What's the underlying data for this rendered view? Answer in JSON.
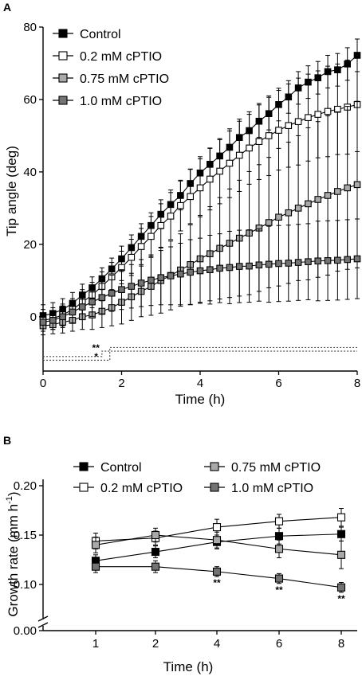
{
  "colors": {
    "control": "#000000",
    "c02": "#ffffff",
    "c075": "#a9a9a9",
    "c10": "#737373"
  },
  "chart_data": [
    {
      "panel": "A",
      "type": "line",
      "xlabel": "Time (h)",
      "ylabel": "Tip angle  (deg)",
      "xlim": [
        0,
        8
      ],
      "ylim": [
        -15,
        80
      ],
      "xticks": [
        0,
        2,
        4,
        6,
        8
      ],
      "yticks": [
        0,
        20,
        40,
        60,
        80
      ],
      "legend_position": "top-left",
      "x": [
        0,
        0.25,
        0.5,
        0.75,
        1.0,
        1.25,
        1.5,
        1.75,
        2.0,
        2.25,
        2.5,
        2.75,
        3.0,
        3.25,
        3.5,
        3.75,
        4.0,
        4.25,
        4.5,
        4.75,
        5.0,
        5.25,
        5.5,
        5.75,
        6.0,
        6.25,
        6.5,
        6.75,
        7.0,
        7.25,
        7.5,
        7.75,
        8.0
      ],
      "series": [
        {
          "name": "Control",
          "color_key": "control",
          "values": [
            0.3,
            0.9,
            2.0,
            3.7,
            6.0,
            8.0,
            10.5,
            13.2,
            16.0,
            19.1,
            22.2,
            25.2,
            28.3,
            31.0,
            33.5,
            36.8,
            39.7,
            42.1,
            44.4,
            46.8,
            49.5,
            51.4,
            54.0,
            56.1,
            58.6,
            60.7,
            63.2,
            64.8,
            66.0,
            67.7,
            68.2,
            69.8,
            72.2
          ],
          "error": [
            3,
            3,
            3,
            3,
            3,
            3,
            3,
            3,
            3.5,
            3.5,
            3.5,
            3.5,
            4,
            4,
            4,
            4,
            4.5,
            4.5,
            4.5,
            4.5,
            4.5,
            4.5,
            4.5,
            4.5,
            4.5,
            4.5,
            4.5,
            4.5,
            4.5,
            4.5,
            4.5,
            4.5,
            4.5
          ]
        },
        {
          "name": "0.2 mM cPTIO",
          "color_key": "c02",
          "values": [
            -1.0,
            -0.5,
            0.5,
            2.0,
            4.0,
            6.0,
            8.4,
            11.0,
            13.6,
            16.4,
            19.4,
            22.2,
            25.2,
            27.8,
            30.7,
            33.2,
            35.6,
            38.0,
            40.2,
            42.4,
            44.6,
            46.6,
            48.4,
            50.0,
            51.5,
            52.8,
            53.9,
            55.0,
            55.9,
            56.7,
            57.3,
            57.9,
            58.6
          ],
          "error": [
            3,
            3,
            3,
            3,
            3.5,
            3.5,
            4,
            4,
            4.5,
            5,
            5,
            5.5,
            6,
            6.5,
            7,
            7.5,
            8,
            8.5,
            9,
            9.5,
            10,
            10,
            10.5,
            11,
            11,
            11.5,
            12,
            12,
            12,
            12.5,
            12.5,
            13,
            13
          ]
        },
        {
          "name": "0.75 mM cPTIO",
          "color_key": "c075",
          "values": [
            -2.5,
            -2.2,
            -1.5,
            -1.0,
            0.0,
            0.5,
            1.5,
            2.5,
            4.0,
            5.5,
            7.0,
            8.4,
            10.0,
            11.4,
            12.9,
            14.4,
            16.0,
            17.4,
            18.9,
            20.3,
            21.7,
            23.1,
            24.5,
            26.0,
            27.5,
            28.7,
            30.0,
            31.2,
            32.4,
            33.5,
            34.6,
            35.6,
            36.5
          ],
          "error": [
            2.5,
            2.5,
            3,
            3,
            3.5,
            4,
            4.5,
            5,
            6,
            6.5,
            7,
            8,
            9,
            9.5,
            10,
            11,
            12,
            13,
            14,
            15,
            16,
            17,
            17.5,
            18,
            19,
            19.5,
            20,
            21,
            21.5,
            22,
            22,
            22.5,
            23
          ]
        },
        {
          "name": "1.0 mM cPTIO",
          "color_key": "c10",
          "values": [
            -1.5,
            -1.0,
            0.0,
            1.3,
            2.7,
            4.1,
            5.3,
            6.5,
            7.5,
            8.4,
            9.3,
            10.1,
            10.8,
            11.3,
            11.8,
            12.3,
            12.7,
            13.0,
            13.4,
            13.6,
            13.9,
            14.0,
            14.3,
            14.5,
            14.7,
            14.8,
            15.0,
            15.2,
            15.4,
            15.5,
            15.6,
            15.8,
            16.0
          ],
          "error": [
            2.5,
            2.5,
            3,
            3,
            3.5,
            4,
            4.5,
            5,
            5.5,
            6,
            6.5,
            7,
            7.5,
            8,
            8.5,
            9,
            9,
            9.5,
            9.5,
            10,
            10,
            10,
            10,
            10.5,
            10.5,
            10.5,
            10.5,
            10.5,
            11,
            11,
            11,
            11,
            11
          ]
        }
      ],
      "significance": {
        "marks": [
          "**",
          "*"
        ],
        "x": 1.5,
        "line_y": [
          -11,
          -12
        ],
        "step_x": [
          1.7,
          2.0
        ],
        "step_y": [
          -9.5,
          -8.5
        ]
      }
    },
    {
      "panel": "B",
      "type": "line",
      "xlabel": "Time (h)",
      "ylabel": "Growth rate (mm h",
      "ylabel_sup": "-1",
      "ylabel_end": ")",
      "x": [
        1,
        2,
        4,
        6,
        8
      ],
      "xticks": [
        1,
        2,
        4,
        6,
        8
      ],
      "yticks": [
        "0.00",
        "0.10",
        "0.15",
        "0.20"
      ],
      "ylim": [
        0.08,
        0.2
      ],
      "axis_break": true,
      "legend_position": "top",
      "series": [
        {
          "name": "Control",
          "color_key": "control",
          "values": [
            0.124,
            0.133,
            0.143,
            0.149,
            0.151
          ],
          "error": [
            0.006,
            0.006,
            0.007,
            0.008,
            0.007
          ]
        },
        {
          "name": "0.2 mM cPTIO",
          "color_key": "c02",
          "values": [
            0.144,
            0.147,
            0.158,
            0.164,
            0.168
          ],
          "error": [
            0.008,
            0.007,
            0.008,
            0.007,
            0.009
          ]
        },
        {
          "name": "0.75 mM cPTIO",
          "color_key": "c075",
          "values": [
            0.14,
            0.15,
            0.145,
            0.136,
            0.13
          ],
          "error": [
            0.008,
            0.007,
            0.008,
            0.009,
            0.014
          ]
        },
        {
          "name": "1.0 mM cPTIO",
          "color_key": "c10",
          "values": [
            0.118,
            0.118,
            0.113,
            0.106,
            0.097
          ],
          "error": [
            0.006,
            0.006,
            0.005,
            0.005,
            0.005
          ]
        }
      ],
      "significance": [
        {
          "x": 4,
          "label": "**"
        },
        {
          "x": 6,
          "label": "**"
        },
        {
          "x": 8,
          "label": "**"
        }
      ]
    }
  ]
}
